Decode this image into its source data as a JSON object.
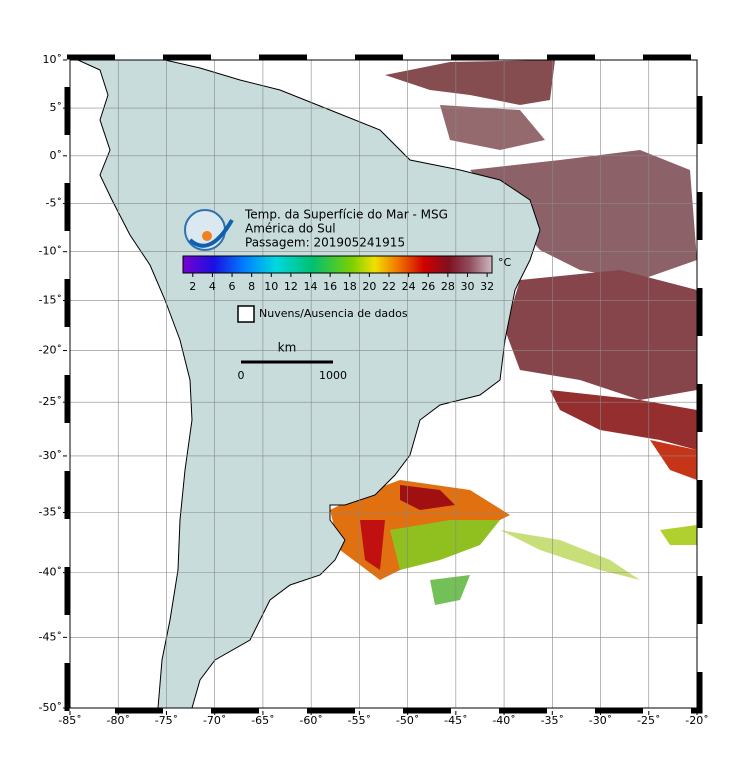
{
  "map": {
    "projection": "mercator",
    "xlim": [
      -85,
      -20
    ],
    "ylim": [
      -50,
      10
    ],
    "grid": true,
    "xticks": [
      {
        "value": -85,
        "label": "-85˚"
      },
      {
        "value": -80,
        "label": "-80˚"
      },
      {
        "value": -75,
        "label": "-75˚"
      },
      {
        "value": -70,
        "label": "-70˚"
      },
      {
        "value": -65,
        "label": "-65˚"
      },
      {
        "value": -60,
        "label": "-60˚"
      },
      {
        "value": -55,
        "label": "-55˚"
      },
      {
        "value": -50,
        "label": "-50˚"
      },
      {
        "value": -45,
        "label": "-45˚"
      },
      {
        "value": -40,
        "label": "-40˚"
      },
      {
        "value": -35,
        "label": "-35˚"
      },
      {
        "value": -30,
        "label": "-30˚"
      },
      {
        "value": -25,
        "label": "-25˚"
      },
      {
        "value": -20,
        "label": "-20˚"
      }
    ],
    "yticks": [
      {
        "value": 10,
        "label": "10˚"
      },
      {
        "value": 5,
        "label": "5˚"
      },
      {
        "value": 0,
        "label": "0˚"
      },
      {
        "value": -5,
        "label": "-5˚"
      },
      {
        "value": -10,
        "label": "-10˚"
      },
      {
        "value": -15,
        "label": "-15˚"
      },
      {
        "value": -20,
        "label": "-20˚"
      },
      {
        "value": -25,
        "label": "-25˚"
      },
      {
        "value": -30,
        "label": "-30˚"
      },
      {
        "value": -35,
        "label": "-35˚"
      },
      {
        "value": -40,
        "label": "-40˚"
      },
      {
        "value": -45,
        "label": "-45˚"
      },
      {
        "value": -50,
        "label": "-50˚"
      }
    ]
  },
  "header": {
    "title": "Temp. da Superfície do Mar - MSG",
    "region": "América do Sul",
    "pass": "Passagem: 201905241915"
  },
  "colorbar": {
    "lim": [
      1,
      32.5
    ],
    "ticks": [
      2,
      4,
      6,
      8,
      10,
      12,
      14,
      16,
      18,
      20,
      22,
      24,
      26,
      28,
      30,
      32
    ],
    "unit": "°C"
  },
  "legend": {
    "label": "Nuvens/Ausencia de dados"
  },
  "scale_bar": {
    "unit": "km",
    "start": "0",
    "end": "1000"
  }
}
